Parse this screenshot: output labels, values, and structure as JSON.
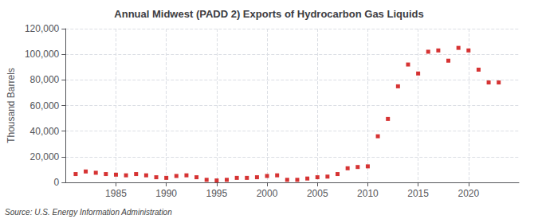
{
  "chart_data": {
    "type": "scatter",
    "title": "Annual Midwest (PADD 2) Exports of Hydrocarbon Gas Liquids",
    "ylabel": "Thousand Barrels",
    "annotations": [
      "Source: U.S. Energy Information Administration"
    ],
    "x": [
      1981,
      1982,
      1983,
      1984,
      1985,
      1986,
      1987,
      1988,
      1989,
      1990,
      1991,
      1992,
      1993,
      1994,
      1995,
      1996,
      1997,
      1998,
      1999,
      2000,
      2001,
      2002,
      2003,
      2004,
      2005,
      2006,
      2007,
      2008,
      2009,
      2010,
      2011,
      2012,
      2013,
      2014,
      2015,
      2016,
      2017,
      2018,
      2019,
      2020,
      2021,
      2022,
      2023
    ],
    "values": [
      6500,
      8500,
      7500,
      6500,
      6000,
      5500,
      6500,
      5500,
      4000,
      3500,
      5000,
      5500,
      4000,
      2000,
      1500,
      2000,
      3500,
      3500,
      4000,
      5000,
      5500,
      2000,
      2000,
      3000,
      4000,
      4500,
      6500,
      11000,
      12000,
      12500,
      36000,
      49500,
      75000,
      92000,
      85000,
      102000,
      103000,
      95000,
      105000,
      103000,
      88000,
      78000,
      78000
    ],
    "color": "#cc0000",
    "marker": "square",
    "xlim": [
      1980,
      2025
    ],
    "xticks": [
      1985,
      1990,
      1995,
      2000,
      2005,
      2010,
      2015,
      2020
    ],
    "ylim": [
      0,
      120000
    ],
    "yticks": [
      0,
      {
        "value": 20000,
        "label": "20,000"
      },
      {
        "value": 40000,
        "label": "40,000"
      },
      {
        "value": 60000,
        "label": "60,000"
      },
      {
        "value": 80000,
        "label": "80,000"
      },
      {
        "value": 100000,
        "label": "100,000"
      },
      {
        "value": 120000,
        "label": "120,000"
      }
    ],
    "grid": true
  }
}
